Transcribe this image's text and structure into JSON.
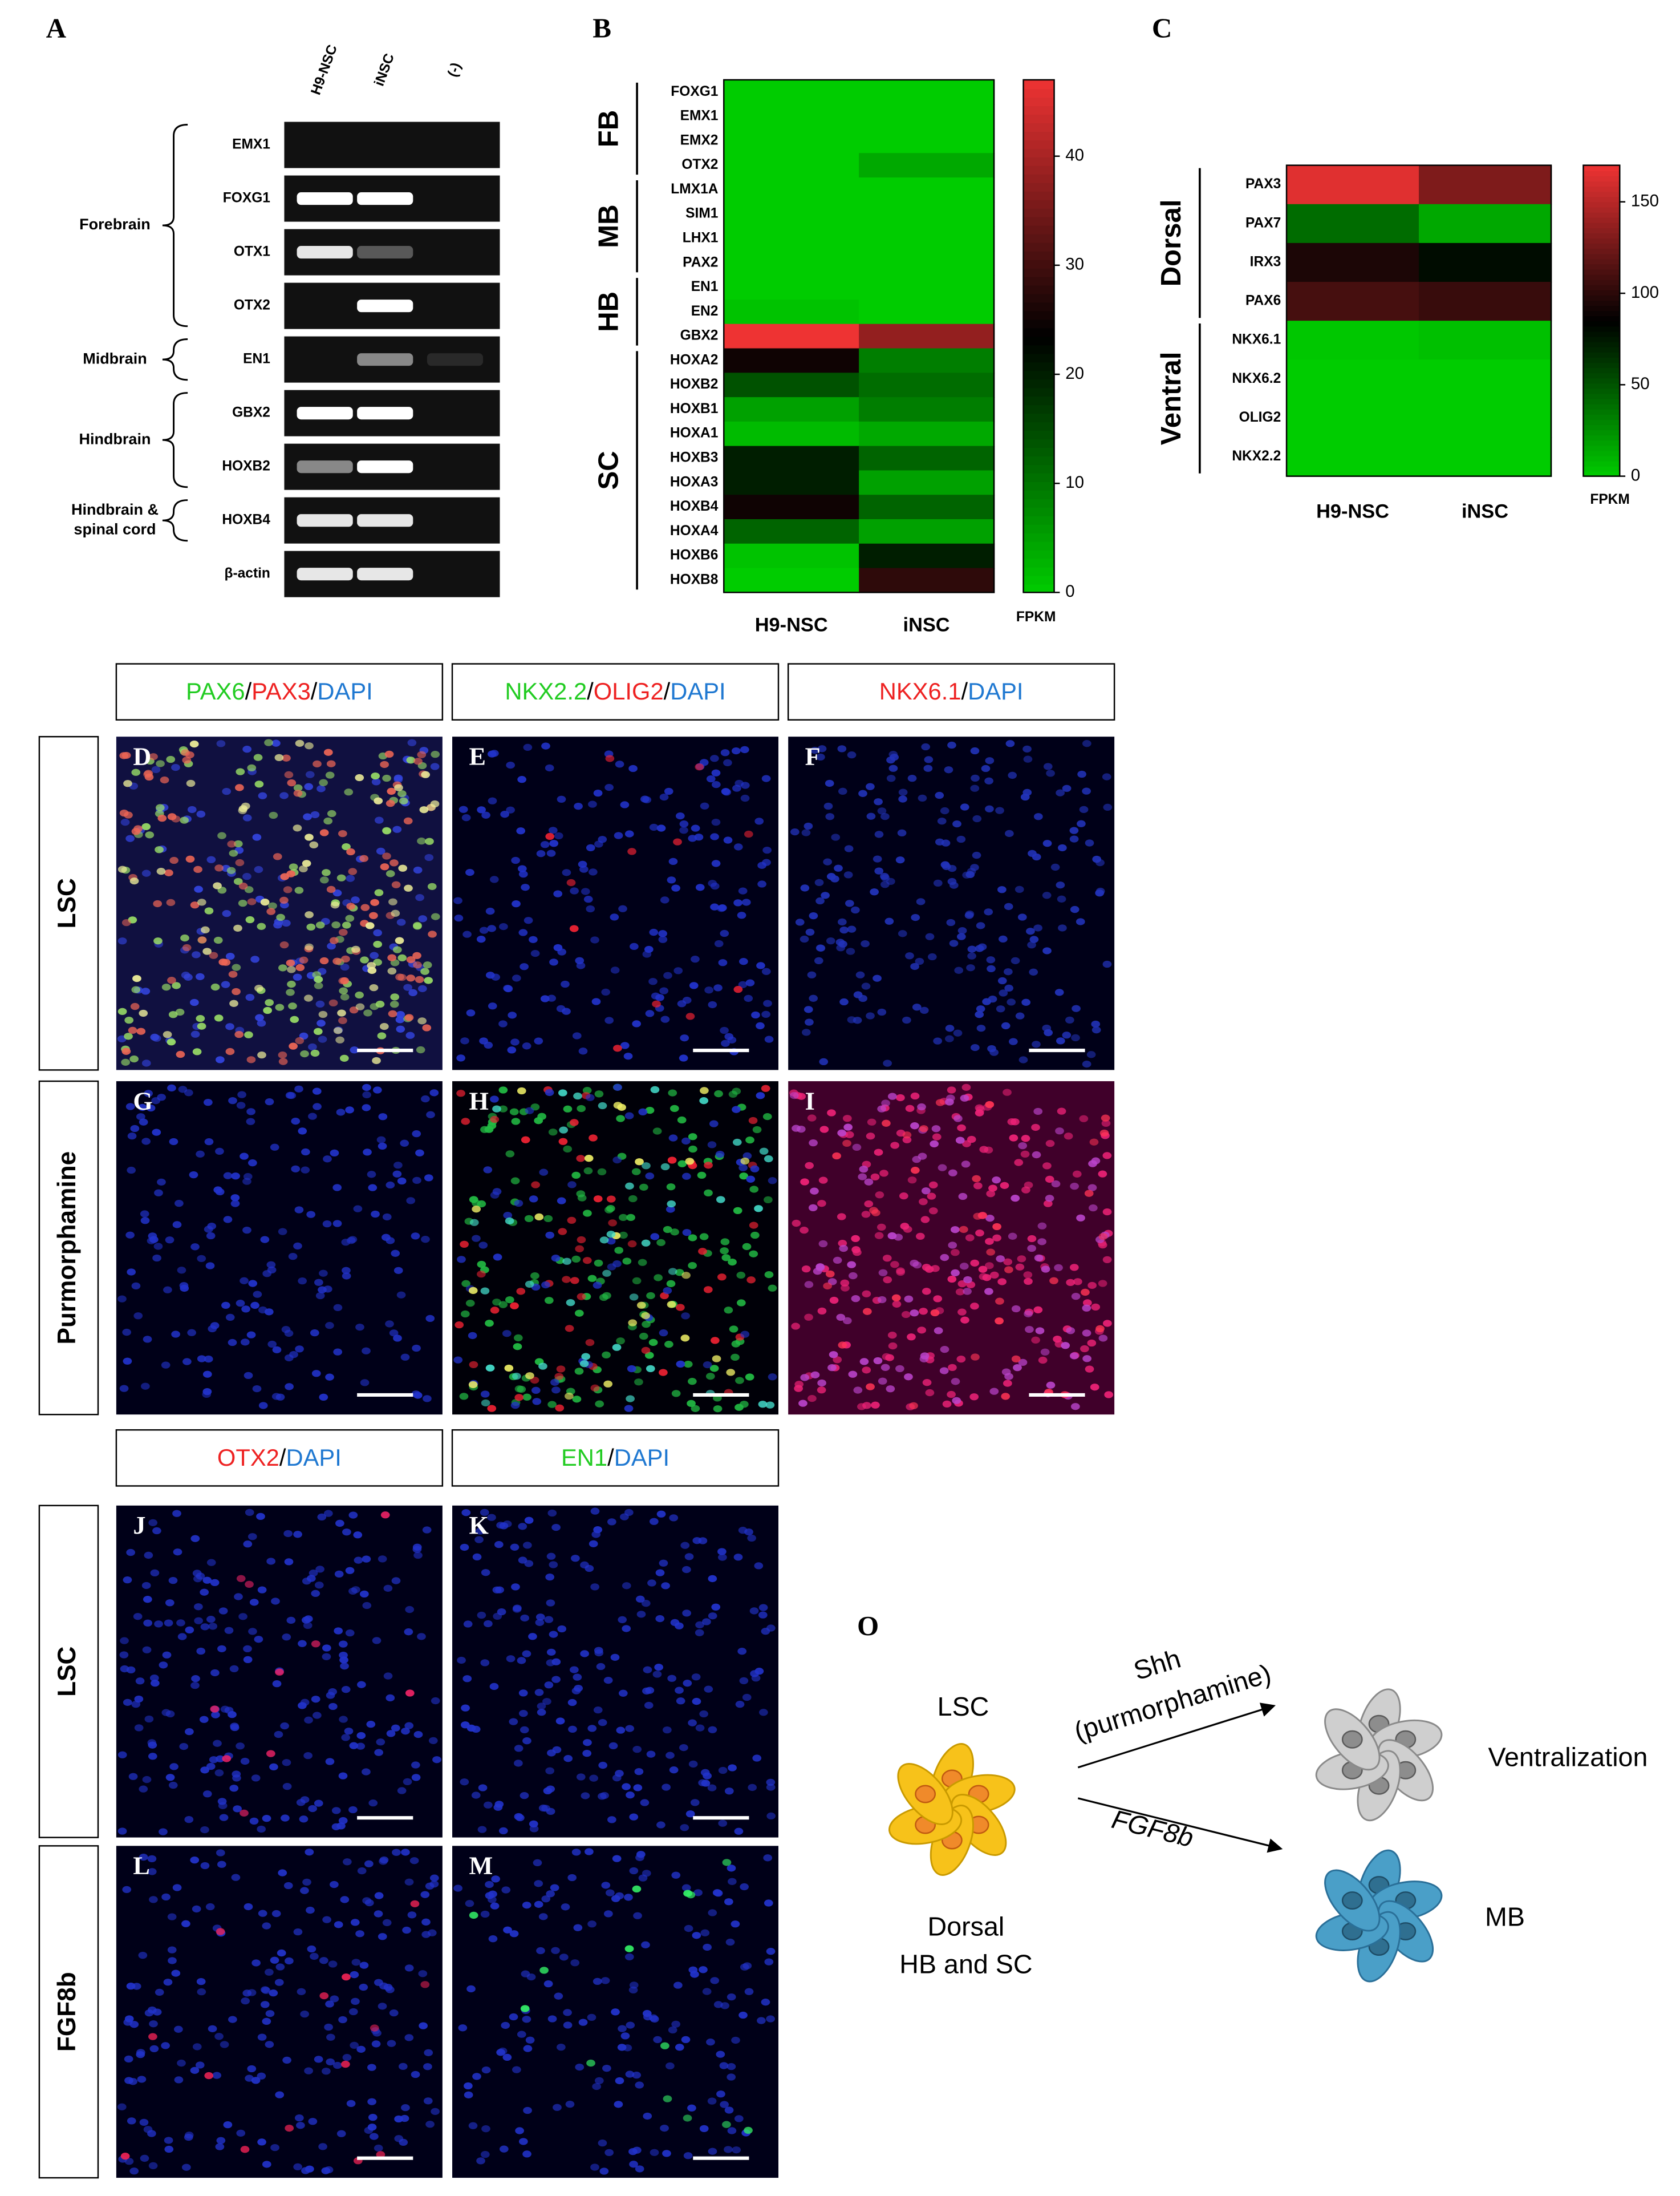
{
  "panel_a": {
    "label": "A",
    "lanes": [
      "H9-NSC",
      "iNSC",
      "(-)"
    ],
    "regions": [
      {
        "label": [
          "Forebrain"
        ],
        "genes": [
          "EMX1",
          "FOXG1",
          "OTX1",
          "OTX2"
        ]
      },
      {
        "label": [
          "Midbrain"
        ],
        "genes": [
          "EN1"
        ]
      },
      {
        "label": [
          "Hindbrain"
        ],
        "genes": [
          "GBX2",
          "HOXB2"
        ]
      },
      {
        "label": [
          "Hindbrain &",
          "spinal cord"
        ],
        "genes": [
          "HOXB4"
        ]
      }
    ],
    "control": "β-actin"
  },
  "chart_data": [
    {
      "type": "heatmap",
      "panel_label": "B",
      "columns": [
        "H9-NSC",
        "iNSC"
      ],
      "groups": [
        {
          "label": "FB",
          "rows": [
            "FOXG1",
            "EMX1",
            "EMX2",
            "OTX2"
          ],
          "values": [
            [
              0,
              0
            ],
            [
              0,
              0
            ],
            [
              0,
              0
            ],
            [
              0,
              4
            ]
          ]
        },
        {
          "label": "MB",
          "rows": [
            "LMX1A",
            "SIM1",
            "LHX1",
            "PAX2"
          ],
          "values": [
            [
              0,
              0
            ],
            [
              0,
              0
            ],
            [
              0,
              0
            ],
            [
              0,
              0
            ]
          ]
        },
        {
          "label": "HB",
          "rows": [
            "EN1",
            "EN2",
            "GBX2"
          ],
          "values": [
            [
              0,
              0
            ],
            [
              1,
              0
            ],
            [
              47,
              38
            ]
          ]
        },
        {
          "label": "SC",
          "rows": [
            "HOXA2",
            "HOXB2",
            "HOXB1",
            "HOXA1",
            "HOXB3",
            "HOXA3",
            "HOXB4",
            "HOXA4",
            "HOXB6",
            "HOXB8"
          ],
          "values": [
            [
              25,
              9
            ],
            [
              14,
              11
            ],
            [
              5,
              9
            ],
            [
              2,
              4
            ],
            [
              20,
              12
            ],
            [
              20,
              5
            ],
            [
              25,
              12
            ],
            [
              12,
              5
            ],
            [
              1,
              20
            ],
            [
              0,
              28
            ]
          ]
        }
      ],
      "colors": [
        "#00cc00",
        "#000000",
        "#ee3333"
      ],
      "zlim": [
        0,
        47
      ],
      "zticks": [
        0,
        10,
        20,
        30,
        40
      ],
      "colorbar_label": "FPKM"
    },
    {
      "type": "heatmap",
      "panel_label": "C",
      "columns": [
        "H9-NSC",
        "iNSC"
      ],
      "groups": [
        {
          "label": "Dorsal",
          "rows": [
            "PAX3",
            "PAX7",
            "IRX3",
            "PAX6"
          ],
          "values": [
            [
              165,
              130
            ],
            [
              40,
              15
            ],
            [
              95,
              80
            ],
            [
              110,
              105
            ]
          ]
        },
        {
          "label": "Ventral",
          "rows": [
            "NKX6.1",
            "NKX6.2",
            "OLIG2",
            "NKX2.2"
          ],
          "values": [
            [
              2,
              5
            ],
            [
              0,
              0
            ],
            [
              0,
              0
            ],
            [
              0,
              0
            ]
          ]
        }
      ],
      "colors": [
        "#00cc00",
        "#000000",
        "#ee3333"
      ],
      "zlim": [
        0,
        170
      ],
      "zticks": [
        0,
        50,
        100,
        150
      ],
      "colorbar_label": "FPKM"
    }
  ],
  "micrographs_top": {
    "headers": [
      [
        {
          "text": "PAX6",
          "color": "#22cc22"
        },
        {
          "text": "/",
          "color": "#000000"
        },
        {
          "text": "PAX3",
          "color": "#ee2222"
        },
        {
          "text": "/",
          "color": "#000000"
        },
        {
          "text": "DAPI",
          "color": "#1f78d1"
        }
      ],
      [
        {
          "text": "NKX2.2",
          "color": "#22cc22"
        },
        {
          "text": "/",
          "color": "#000000"
        },
        {
          "text": "OLIG2",
          "color": "#ee2222"
        },
        {
          "text": "/",
          "color": "#000000"
        },
        {
          "text": "DAPI",
          "color": "#1f78d1"
        }
      ],
      [
        {
          "text": "NKX6.1",
          "color": "#ee2222"
        },
        {
          "text": "/",
          "color": "#000000"
        },
        {
          "text": "DAPI",
          "color": "#1f78d1"
        }
      ]
    ],
    "rows": [
      "LSC",
      "Purmorphamine"
    ],
    "panels": [
      "D",
      "E",
      "F",
      "G",
      "H",
      "I"
    ]
  },
  "micrographs_bottom": {
    "headers": [
      [
        {
          "text": "OTX2",
          "color": "#ee2222"
        },
        {
          "text": "/",
          "color": "#000000"
        },
        {
          "text": "DAPI",
          "color": "#1f78d1"
        }
      ],
      [
        {
          "text": "EN1",
          "color": "#22cc22"
        },
        {
          "text": "/",
          "color": "#000000"
        },
        {
          "text": "DAPI",
          "color": "#1f78d1"
        }
      ]
    ],
    "rows": [
      "LSC",
      "FGF8b"
    ],
    "panels": [
      "J",
      "K",
      "L",
      "M"
    ]
  },
  "panel_o": {
    "label": "O",
    "start": "LSC",
    "start_caption": [
      "Dorsal",
      "HB and SC"
    ],
    "arrows": [
      {
        "label": [
          "Shh",
          "(purmorphamine)"
        ],
        "result": "Ventralization"
      },
      {
        "label": [
          "FGF8b"
        ],
        "result": "MB"
      }
    ]
  }
}
